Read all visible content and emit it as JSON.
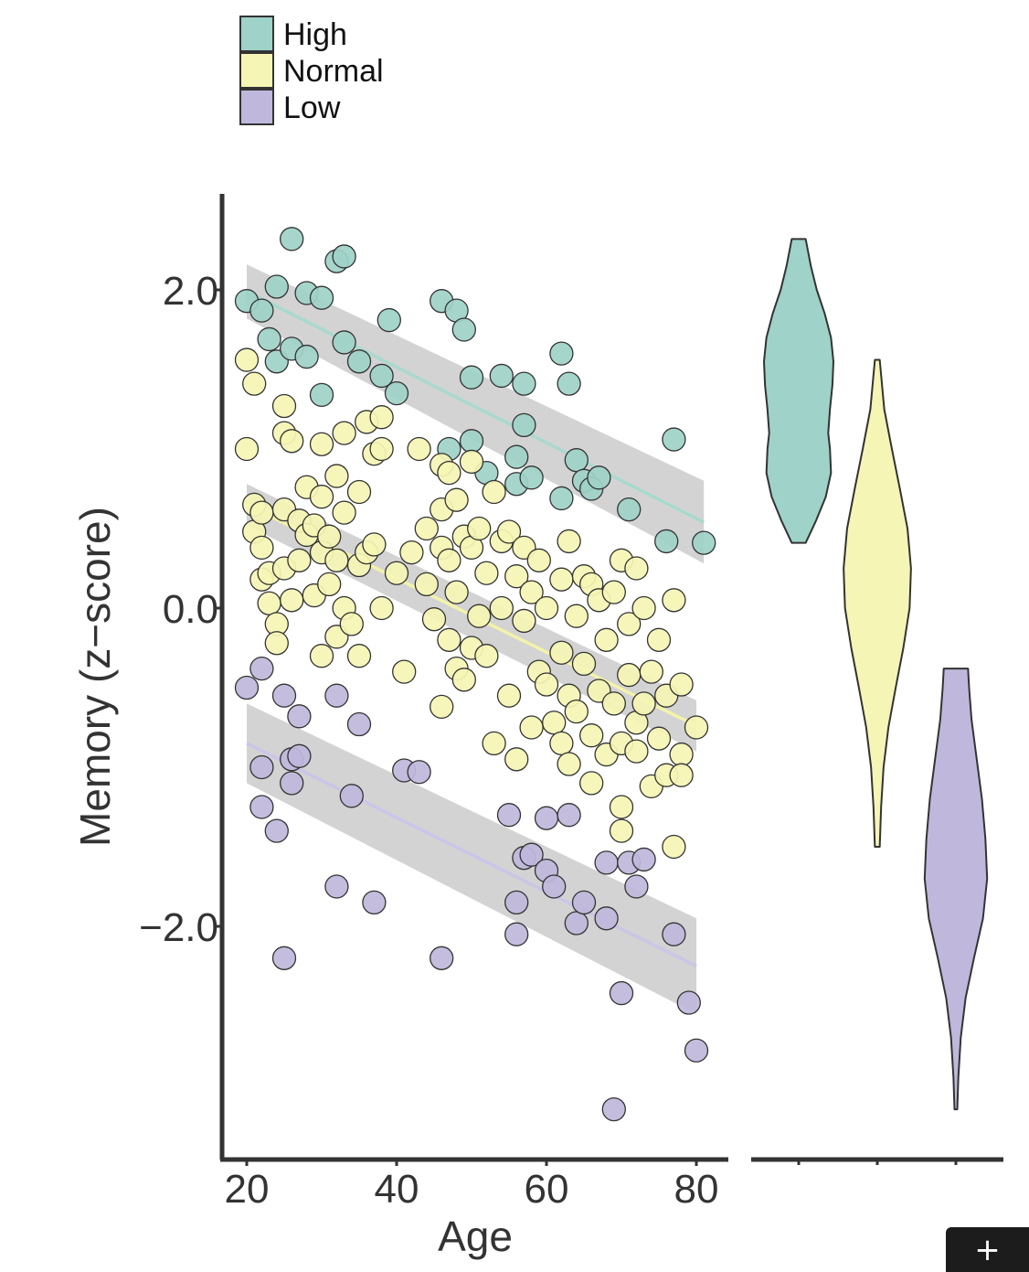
{
  "chart_data": {
    "type": "scatter",
    "title": "",
    "xlabel": "Age",
    "ylabel": "Memory (z−score)",
    "xlim": [
      17,
      83
    ],
    "ylim": [
      -3.55,
      2.55
    ],
    "xticks": [
      20,
      40,
      60,
      80
    ],
    "xtick_labels": [
      "20",
      "40",
      "60",
      "80"
    ],
    "yticks": [
      2.0,
      0.0,
      -2.0
    ],
    "ytick_labels": [
      "2.0",
      "0.0",
      "−2.0"
    ],
    "legend_position": "top-left",
    "legend": [
      {
        "name": "High",
        "color": "#9fd2c8"
      },
      {
        "name": "Normal",
        "color": "#f5f5b5"
      },
      {
        "name": "Low",
        "color": "#bfb8dc"
      }
    ],
    "colors": {
      "high": "#9fd2c8",
      "normal": "#f5f5b5",
      "low": "#bfb8dc",
      "high_line": "#a6d9cd",
      "normal_line": "#f4f4a8",
      "low_line": "#cbc4e8",
      "band": "#c4c4c4",
      "stroke": "#333333",
      "axis": "#333333",
      "text": "#333333"
    },
    "series": [
      {
        "name": "High",
        "points": [
          [
            20,
            1.93
          ],
          [
            22,
            1.87
          ],
          [
            23,
            1.69
          ],
          [
            24,
            2.02
          ],
          [
            24,
            1.55
          ],
          [
            26,
            2.32
          ],
          [
            26,
            1.63
          ],
          [
            28,
            1.98
          ],
          [
            28,
            1.58
          ],
          [
            30,
            1.95
          ],
          [
            30,
            1.34
          ],
          [
            32,
            2.18
          ],
          [
            33,
            2.21
          ],
          [
            33,
            1.67
          ],
          [
            35,
            1.55
          ],
          [
            38,
            1.46
          ],
          [
            39,
            1.81
          ],
          [
            40,
            1.35
          ],
          [
            46,
            1.93
          ],
          [
            47,
            1.0
          ],
          [
            48,
            1.87
          ],
          [
            49,
            1.75
          ],
          [
            50,
            1.05
          ],
          [
            50,
            1.45
          ],
          [
            52,
            0.85
          ],
          [
            54,
            1.46
          ],
          [
            56,
            0.95
          ],
          [
            56,
            0.78
          ],
          [
            57,
            1.41
          ],
          [
            57,
            1.15
          ],
          [
            58,
            0.82
          ],
          [
            62,
            1.6
          ],
          [
            62,
            0.69
          ],
          [
            63,
            1.41
          ],
          [
            64,
            0.93
          ],
          [
            65,
            0.8
          ],
          [
            66,
            0.75
          ],
          [
            67,
            0.82
          ],
          [
            71,
            0.62
          ],
          [
            76,
            0.42
          ],
          [
            77,
            1.06
          ],
          [
            81,
            0.41
          ]
        ],
        "fit": {
          "x": [
            20,
            81
          ],
          "y": [
            1.99,
            0.54
          ],
          "ci_lo": [
            1.82,
            0.28
          ],
          "ci_hi": [
            2.16,
            0.8
          ]
        }
      },
      {
        "name": "Normal",
        "points": [
          [
            20,
            1.0
          ],
          [
            20,
            1.56
          ],
          [
            21,
            1.41
          ],
          [
            21,
            0.65
          ],
          [
            21,
            0.48
          ],
          [
            22,
            0.6
          ],
          [
            22,
            0.38
          ],
          [
            22,
            0.18
          ],
          [
            23,
            0.22
          ],
          [
            23,
            0.03
          ],
          [
            24,
            -0.1
          ],
          [
            24,
            -0.22
          ],
          [
            25,
            1.27
          ],
          [
            25,
            1.1
          ],
          [
            25,
            0.62
          ],
          [
            25,
            0.25
          ],
          [
            26,
            1.05
          ],
          [
            26,
            0.05
          ],
          [
            27,
            0.55
          ],
          [
            27,
            0.3
          ],
          [
            28,
            0.76
          ],
          [
            28,
            0.46
          ],
          [
            29,
            0.52
          ],
          [
            29,
            0.08
          ],
          [
            30,
            1.03
          ],
          [
            30,
            0.7
          ],
          [
            30,
            0.35
          ],
          [
            30,
            -0.3
          ],
          [
            31,
            0.45
          ],
          [
            31,
            0.15
          ],
          [
            32,
            0.83
          ],
          [
            32,
            0.3
          ],
          [
            32,
            -0.18
          ],
          [
            33,
            1.1
          ],
          [
            33,
            0.6
          ],
          [
            33,
            0.0
          ],
          [
            34,
            -0.1
          ],
          [
            35,
            0.73
          ],
          [
            35,
            0.27
          ],
          [
            35,
            -0.3
          ],
          [
            36,
            1.17
          ],
          [
            36,
            0.35
          ],
          [
            37,
            0.97
          ],
          [
            37,
            0.4
          ],
          [
            38,
            1.2
          ],
          [
            38,
            1.0
          ],
          [
            38,
            0.0
          ],
          [
            40,
            0.22
          ],
          [
            41,
            -0.4
          ],
          [
            42,
            0.35
          ],
          [
            43,
            1.0
          ],
          [
            44,
            0.5
          ],
          [
            44,
            0.15
          ],
          [
            45,
            -0.07
          ],
          [
            46,
            0.9
          ],
          [
            46,
            0.62
          ],
          [
            46,
            0.38
          ],
          [
            46,
            -0.62
          ],
          [
            47,
            0.85
          ],
          [
            47,
            0.3
          ],
          [
            47,
            -0.2
          ],
          [
            48,
            0.68
          ],
          [
            48,
            0.1
          ],
          [
            48,
            -0.38
          ],
          [
            49,
            0.45
          ],
          [
            49,
            -0.45
          ],
          [
            50,
            0.92
          ],
          [
            50,
            0.38
          ],
          [
            50,
            -0.25
          ],
          [
            51,
            0.5
          ],
          [
            51,
            -0.05
          ],
          [
            52,
            0.22
          ],
          [
            52,
            -0.3
          ],
          [
            53,
            0.73
          ],
          [
            53,
            -0.85
          ],
          [
            54,
            0.42
          ],
          [
            54,
            0.0
          ],
          [
            55,
            0.48
          ],
          [
            55,
            -0.55
          ],
          [
            56,
            -0.95
          ],
          [
            56,
            0.2
          ],
          [
            57,
            0.38
          ],
          [
            57,
            -0.08
          ],
          [
            58,
            0.1
          ],
          [
            58,
            -0.75
          ],
          [
            59,
            0.3
          ],
          [
            59,
            -0.4
          ],
          [
            60,
            0.0
          ],
          [
            60,
            -0.48
          ],
          [
            61,
            -0.72
          ],
          [
            62,
            0.18
          ],
          [
            62,
            -0.28
          ],
          [
            62,
            -0.85
          ],
          [
            63,
            0.42
          ],
          [
            63,
            -0.55
          ],
          [
            63,
            -0.98
          ],
          [
            64,
            -0.05
          ],
          [
            64,
            -0.65
          ],
          [
            65,
            0.2
          ],
          [
            65,
            -0.35
          ],
          [
            66,
            0.15
          ],
          [
            66,
            -0.8
          ],
          [
            66,
            -1.1
          ],
          [
            67,
            0.05
          ],
          [
            67,
            -0.52
          ],
          [
            68,
            -0.92
          ],
          [
            68,
            -0.2
          ],
          [
            69,
            0.1
          ],
          [
            69,
            -0.6
          ],
          [
            70,
            0.3
          ],
          [
            70,
            -0.85
          ],
          [
            70,
            -1.25
          ],
          [
            70,
            -1.4
          ],
          [
            71,
            -0.1
          ],
          [
            71,
            -0.42
          ],
          [
            72,
            0.25
          ],
          [
            72,
            -0.72
          ],
          [
            72,
            -0.9
          ],
          [
            73,
            0.0
          ],
          [
            73,
            -0.6
          ],
          [
            74,
            -1.12
          ],
          [
            74,
            -0.4
          ],
          [
            75,
            -0.2
          ],
          [
            75,
            -0.82
          ],
          [
            76,
            -0.55
          ],
          [
            76,
            -1.05
          ],
          [
            77,
            0.05
          ],
          [
            77,
            -1.5
          ],
          [
            78,
            -0.48
          ],
          [
            78,
            -0.92
          ],
          [
            78,
            -1.05
          ],
          [
            80,
            -0.75
          ]
        ],
        "fit": {
          "x": [
            20,
            80
          ],
          "y": [
            0.65,
            -0.74
          ],
          "ci_lo": [
            0.52,
            -0.9
          ],
          "ci_hi": [
            0.78,
            -0.58
          ]
        }
      },
      {
        "name": "Low",
        "points": [
          [
            20,
            -0.5
          ],
          [
            22,
            -0.38
          ],
          [
            22,
            -1.0
          ],
          [
            22,
            -1.25
          ],
          [
            24,
            -1.4
          ],
          [
            25,
            -0.55
          ],
          [
            25,
            -2.2
          ],
          [
            26,
            -0.95
          ],
          [
            26,
            -1.1
          ],
          [
            27,
            -0.68
          ],
          [
            27,
            -0.93
          ],
          [
            32,
            -0.55
          ],
          [
            32,
            -1.75
          ],
          [
            34,
            -1.18
          ],
          [
            35,
            -0.73
          ],
          [
            37,
            -1.85
          ],
          [
            41,
            -1.02
          ],
          [
            43,
            -1.03
          ],
          [
            46,
            -2.2
          ],
          [
            55,
            -1.3
          ],
          [
            56,
            -1.85
          ],
          [
            56,
            -2.05
          ],
          [
            57,
            -1.57
          ],
          [
            58,
            -1.55
          ],
          [
            60,
            -1.32
          ],
          [
            60,
            -1.65
          ],
          [
            61,
            -1.75
          ],
          [
            63,
            -1.3
          ],
          [
            64,
            -1.98
          ],
          [
            65,
            -1.85
          ],
          [
            68,
            -1.95
          ],
          [
            68,
            -1.6
          ],
          [
            69,
            -3.15
          ],
          [
            70,
            -2.42
          ],
          [
            71,
            -1.6
          ],
          [
            72,
            -1.75
          ],
          [
            73,
            -1.58
          ],
          [
            77,
            -2.05
          ],
          [
            79,
            -2.48
          ],
          [
            80,
            -2.78
          ]
        ],
        "fit": {
          "x": [
            20,
            80
          ],
          "y": [
            -0.85,
            -2.25
          ],
          "ci_lo": [
            -1.1,
            -2.55
          ],
          "ci_hi": [
            -0.6,
            -1.95
          ]
        }
      }
    ],
    "violin": {
      "groups": [
        {
          "name": "High",
          "min": 0.41,
          "max": 2.32,
          "profile": [
            [
              0.41,
              0.2
            ],
            [
              0.55,
              0.5
            ],
            [
              0.7,
              0.78
            ],
            [
              0.85,
              0.93
            ],
            [
              1.0,
              0.9
            ],
            [
              1.1,
              0.85
            ],
            [
              1.25,
              0.9
            ],
            [
              1.4,
              0.97
            ],
            [
              1.55,
              1.0
            ],
            [
              1.7,
              0.93
            ],
            [
              1.85,
              0.75
            ],
            [
              2.0,
              0.52
            ],
            [
              2.15,
              0.35
            ],
            [
              2.32,
              0.2
            ]
          ]
        },
        {
          "name": "Normal",
          "min": -1.5,
          "max": 1.56,
          "profile": [
            [
              -1.5,
              0.07
            ],
            [
              -1.25,
              0.11
            ],
            [
              -1.0,
              0.18
            ],
            [
              -0.75,
              0.32
            ],
            [
              -0.5,
              0.53
            ],
            [
              -0.25,
              0.75
            ],
            [
              0.0,
              0.93
            ],
            [
              0.25,
              0.97
            ],
            [
              0.5,
              0.87
            ],
            [
              0.75,
              0.65
            ],
            [
              1.0,
              0.42
            ],
            [
              1.25,
              0.2
            ],
            [
              1.56,
              0.07
            ]
          ]
        },
        {
          "name": "Low",
          "min": -3.15,
          "max": -0.38,
          "profile": [
            [
              -3.15,
              0.04
            ],
            [
              -2.95,
              0.07
            ],
            [
              -2.7,
              0.14
            ],
            [
              -2.45,
              0.28
            ],
            [
              -2.2,
              0.52
            ],
            [
              -1.95,
              0.78
            ],
            [
              -1.7,
              0.9
            ],
            [
              -1.45,
              0.85
            ],
            [
              -1.2,
              0.75
            ],
            [
              -0.95,
              0.6
            ],
            [
              -0.7,
              0.45
            ],
            [
              -0.5,
              0.38
            ],
            [
              -0.38,
              0.35
            ]
          ]
        }
      ]
    }
  },
  "ui": {
    "expand_button_label": "+"
  }
}
